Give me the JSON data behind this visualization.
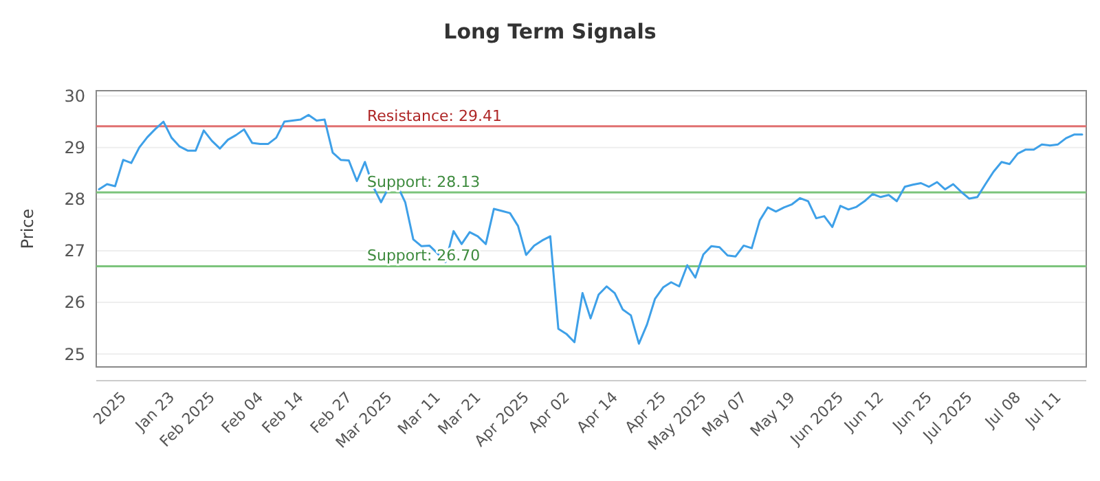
{
  "chart_data": {
    "type": "line",
    "title": "Long Term Signals",
    "ylabel": "Price",
    "categories": [
      null,
      null,
      null,
      "2025",
      null,
      null,
      null,
      null,
      null,
      "Jan 23",
      null,
      null,
      null,
      null,
      "Feb 2025",
      null,
      null,
      null,
      null,
      null,
      "Feb 04",
      null,
      null,
      null,
      null,
      "Feb 14",
      null,
      null,
      null,
      null,
      null,
      "Feb 27",
      null,
      null,
      null,
      null,
      "Mar 2025",
      null,
      null,
      null,
      null,
      null,
      "Mar 11",
      null,
      null,
      null,
      null,
      "Mar 21",
      null,
      null,
      null,
      null,
      null,
      "Apr 2025",
      null,
      null,
      null,
      null,
      "Apr 02",
      null,
      null,
      null,
      null,
      null,
      "Apr 14",
      null,
      null,
      null,
      null,
      null,
      "Apr 25",
      null,
      null,
      null,
      null,
      "May 2025",
      null,
      null,
      null,
      null,
      "May 07",
      null,
      null,
      null,
      null,
      null,
      "May 19",
      null,
      null,
      null,
      null,
      null,
      "Jun 2025",
      null,
      null,
      null,
      null,
      "Jun 12",
      null,
      null,
      null,
      null,
      null,
      "Jun 25",
      null,
      null,
      null,
      null,
      "Jul 2025",
      null,
      null,
      null,
      null,
      null,
      "Jul 08",
      null,
      null,
      null,
      null,
      "Jul 11",
      null,
      null,
      null
    ],
    "series": [
      {
        "color": "#3ea0e8",
        "values": [
          28.19,
          28.29,
          28.25,
          28.76,
          28.7,
          29.0,
          29.2,
          29.36,
          29.5,
          29.19,
          29.02,
          28.94,
          28.94,
          29.33,
          29.13,
          28.98,
          29.15,
          29.24,
          29.35,
          29.09,
          29.07,
          29.07,
          29.19,
          29.5,
          29.52,
          29.54,
          29.63,
          29.52,
          29.54,
          28.9,
          28.76,
          28.75,
          28.35,
          28.72,
          28.25,
          27.94,
          28.24,
          28.27,
          27.94,
          27.22,
          27.09,
          27.1,
          26.95,
          26.78,
          27.38,
          27.13,
          27.36,
          27.28,
          27.13,
          27.81,
          27.77,
          27.73,
          27.48,
          26.92,
          27.1,
          27.2,
          27.28,
          25.49,
          25.39,
          25.23,
          26.18,
          25.69,
          26.15,
          26.31,
          26.18,
          25.86,
          25.75,
          25.2,
          25.57,
          26.07,
          26.29,
          26.39,
          26.31,
          26.72,
          26.48,
          26.93,
          27.09,
          27.07,
          26.91,
          26.89,
          27.1,
          27.05,
          27.59,
          27.84,
          27.76,
          27.84,
          27.9,
          28.02,
          27.96,
          27.63,
          27.67,
          27.46,
          27.87,
          27.8,
          27.85,
          27.96,
          28.1,
          28.04,
          28.08,
          27.96,
          28.24,
          28.28,
          28.31,
          28.24,
          28.33,
          28.19,
          28.29,
          28.14,
          28.01,
          28.04,
          28.29,
          28.53,
          28.72,
          28.68,
          28.88,
          28.96,
          28.96,
          29.06,
          29.04,
          29.06,
          29.18,
          29.25,
          29.25
        ]
      }
    ],
    "ylim": [
      24.75,
      30.1
    ],
    "yticks": [
      25,
      26,
      27,
      28,
      29,
      30
    ],
    "grid": "y",
    "marker": "none",
    "line_style": "solid",
    "ref_lines": [
      {
        "axis": "y",
        "value": 29.41,
        "label": "Resistance: 29.41",
        "color": "#e07070"
      },
      {
        "axis": "y",
        "value": 28.13,
        "label": "Support: 28.13",
        "color": "#7cc47c"
      },
      {
        "axis": "y",
        "value": 26.7,
        "label": "Support: 26.70",
        "color": "#7cc47c"
      }
    ]
  }
}
